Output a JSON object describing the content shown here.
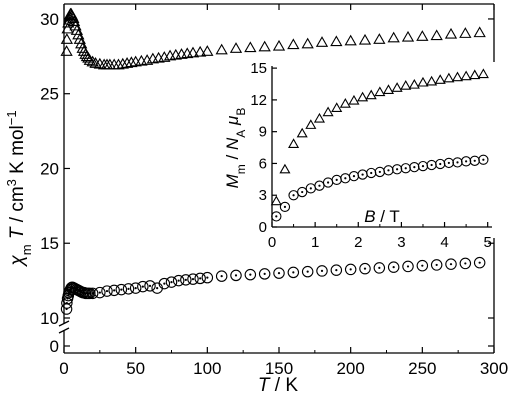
{
  "chart_data": [
    {
      "type": "scatter",
      "title": "",
      "xlabel": {
        "main": "T",
        "unit": "K"
      },
      "ylabel": {
        "sym": "χ",
        "sub": "m",
        "T": "T",
        "unit_pre": "cm",
        "unit_sup": "3",
        "unit_mid": " K mol",
        "unit_sup2": "−1"
      },
      "xlim": [
        0,
        300
      ],
      "ylim_upper": [
        10,
        31
      ],
      "ylim_lower": [
        0,
        1
      ],
      "axis_break": "between 0 and 10",
      "x_ticks": [
        "0",
        "50",
        "100",
        "150",
        "200",
        "250",
        "300"
      ],
      "y_ticks": [
        "0",
        "10",
        "15",
        "20",
        "25",
        "30"
      ],
      "series": [
        {
          "marker": "triangle",
          "points": [
            [
              1.8,
              27.8
            ],
            [
              2,
              28.6
            ],
            [
              2.5,
              29.3
            ],
            [
              3,
              29.7
            ],
            [
              3.5,
              29.9
            ],
            [
              4,
              30.1
            ],
            [
              4.5,
              30.3
            ],
            [
              5,
              30.3
            ],
            [
              5.5,
              30.2
            ],
            [
              6,
              30.1
            ],
            [
              6.5,
              30.0
            ],
            [
              7,
              29.8
            ],
            [
              8,
              29.5
            ],
            [
              9,
              29.2
            ],
            [
              10,
              28.9
            ],
            [
              11,
              28.6
            ],
            [
              12,
              28.3
            ],
            [
              13,
              28.0
            ],
            [
              14,
              27.8
            ],
            [
              15,
              27.6
            ],
            [
              16,
              27.45
            ],
            [
              17,
              27.35
            ],
            [
              18,
              27.2
            ],
            [
              20,
              27.1
            ],
            [
              22,
              27.0
            ],
            [
              25,
              26.95
            ],
            [
              28,
              26.9
            ],
            [
              30,
              26.9
            ],
            [
              32,
              26.9
            ],
            [
              35,
              26.9
            ],
            [
              38,
              26.9
            ],
            [
              41,
              26.95
            ],
            [
              44,
              27.0
            ],
            [
              47,
              27.05
            ],
            [
              50,
              27.1
            ],
            [
              54,
              27.15
            ],
            [
              58,
              27.2
            ],
            [
              62,
              27.3
            ],
            [
              66,
              27.35
            ],
            [
              70,
              27.4
            ],
            [
              74,
              27.5
            ],
            [
              78,
              27.55
            ],
            [
              82,
              27.6
            ],
            [
              86,
              27.65
            ],
            [
              90,
              27.7
            ],
            [
              95,
              27.75
            ],
            [
              100,
              27.8
            ],
            [
              110,
              27.9
            ],
            [
              120,
              28.0
            ],
            [
              130,
              28.05
            ],
            [
              140,
              28.1
            ],
            [
              150,
              28.15
            ],
            [
              160,
              28.25
            ],
            [
              170,
              28.3
            ],
            [
              180,
              28.4
            ],
            [
              190,
              28.45
            ],
            [
              200,
              28.5
            ],
            [
              210,
              28.55
            ],
            [
              220,
              28.6
            ],
            [
              230,
              28.7
            ],
            [
              240,
              28.75
            ],
            [
              250,
              28.8
            ],
            [
              260,
              28.85
            ],
            [
              270,
              28.95
            ],
            [
              280,
              29.0
            ],
            [
              290,
              29.05
            ]
          ]
        },
        {
          "marker": "dotted-circle",
          "points": [
            [
              1.8,
              10.6
            ],
            [
              2,
              11.0
            ],
            [
              2.5,
              11.3
            ],
            [
              3,
              11.5
            ],
            [
              3.5,
              11.7
            ],
            [
              4,
              11.8
            ],
            [
              4.5,
              11.9
            ],
            [
              5,
              12.0
            ],
            [
              5.5,
              12.05
            ],
            [
              6,
              12.05
            ],
            [
              7,
              12.0
            ],
            [
              8,
              11.95
            ],
            [
              9,
              11.9
            ],
            [
              10,
              11.85
            ],
            [
              11,
              11.8
            ],
            [
              12,
              11.75
            ],
            [
              13,
              11.7
            ],
            [
              14,
              11.7
            ],
            [
              15,
              11.65
            ],
            [
              16,
              11.65
            ],
            [
              17,
              11.65
            ],
            [
              18,
              11.65
            ],
            [
              20,
              11.65
            ],
            [
              25,
              11.7
            ],
            [
              30,
              11.8
            ],
            [
              35,
              11.85
            ],
            [
              40,
              11.9
            ],
            [
              45,
              11.95
            ],
            [
              50,
              12.0
            ],
            [
              55,
              12.1
            ],
            [
              60,
              12.15
            ],
            [
              65,
              12.0
            ],
            [
              70,
              12.3
            ],
            [
              75,
              12.4
            ],
            [
              80,
              12.5
            ],
            [
              85,
              12.55
            ],
            [
              90,
              12.6
            ],
            [
              95,
              12.65
            ],
            [
              100,
              12.7
            ],
            [
              110,
              12.8
            ],
            [
              120,
              12.85
            ],
            [
              130,
              12.9
            ],
            [
              140,
              12.95
            ],
            [
              150,
              13.0
            ],
            [
              160,
              13.05
            ],
            [
              170,
              13.1
            ],
            [
              180,
              13.15
            ],
            [
              190,
              13.2
            ],
            [
              200,
              13.25
            ],
            [
              210,
              13.3
            ],
            [
              220,
              13.35
            ],
            [
              230,
              13.4
            ],
            [
              240,
              13.45
            ],
            [
              250,
              13.5
            ],
            [
              260,
              13.55
            ],
            [
              270,
              13.6
            ],
            [
              280,
              13.65
            ],
            [
              290,
              13.7
            ]
          ]
        }
      ]
    },
    {
      "type": "scatter",
      "title": "",
      "xlabel": {
        "main": "B",
        "unit": "T"
      },
      "ylabel": {
        "M": "M",
        "Msub": "m",
        "N": "N",
        "Nsub": "A",
        "mu": "μ",
        "musub": "B"
      },
      "xlim": [
        0,
        5.1
      ],
      "ylim": [
        0,
        15.2
      ],
      "x_ticks": [
        "0",
        "1",
        "2",
        "3",
        "4",
        "5"
      ],
      "y_ticks": [
        "0",
        "3",
        "6",
        "9",
        "12",
        "15"
      ],
      "series": [
        {
          "marker": "triangle",
          "points": [
            [
              0.1,
              2.4
            ],
            [
              0.3,
              5.4
            ],
            [
              0.5,
              7.8
            ],
            [
              0.7,
              8.8
            ],
            [
              0.9,
              9.6
            ],
            [
              1.1,
              10.2
            ],
            [
              1.3,
              10.8
            ],
            [
              1.5,
              11.2
            ],
            [
              1.7,
              11.6
            ],
            [
              1.9,
              11.9
            ],
            [
              2.1,
              12.2
            ],
            [
              2.3,
              12.4
            ],
            [
              2.5,
              12.7
            ],
            [
              2.7,
              12.9
            ],
            [
              2.9,
              13.1
            ],
            [
              3.1,
              13.3
            ],
            [
              3.3,
              13.4
            ],
            [
              3.5,
              13.6
            ],
            [
              3.7,
              13.7
            ],
            [
              3.9,
              13.85
            ],
            [
              4.1,
              14.0
            ],
            [
              4.3,
              14.1
            ],
            [
              4.5,
              14.2
            ],
            [
              4.7,
              14.3
            ],
            [
              4.9,
              14.4
            ]
          ]
        },
        {
          "marker": "dotted-circle",
          "points": [
            [
              0.1,
              1.0
            ],
            [
              0.3,
              1.9
            ],
            [
              0.5,
              3.0
            ],
            [
              0.7,
              3.3
            ],
            [
              0.9,
              3.65
            ],
            [
              1.1,
              3.9
            ],
            [
              1.3,
              4.2
            ],
            [
              1.5,
              4.45
            ],
            [
              1.7,
              4.6
            ],
            [
              1.9,
              4.8
            ],
            [
              2.1,
              4.95
            ],
            [
              2.3,
              5.1
            ],
            [
              2.5,
              5.2
            ],
            [
              2.7,
              5.35
            ],
            [
              2.9,
              5.45
            ],
            [
              3.1,
              5.55
            ],
            [
              3.3,
              5.65
            ],
            [
              3.5,
              5.75
            ],
            [
              3.7,
              5.85
            ],
            [
              3.9,
              5.95
            ],
            [
              4.1,
              6.05
            ],
            [
              4.3,
              6.1
            ],
            [
              4.5,
              6.2
            ],
            [
              4.7,
              6.25
            ],
            [
              4.9,
              6.35
            ]
          ]
        }
      ]
    }
  ]
}
